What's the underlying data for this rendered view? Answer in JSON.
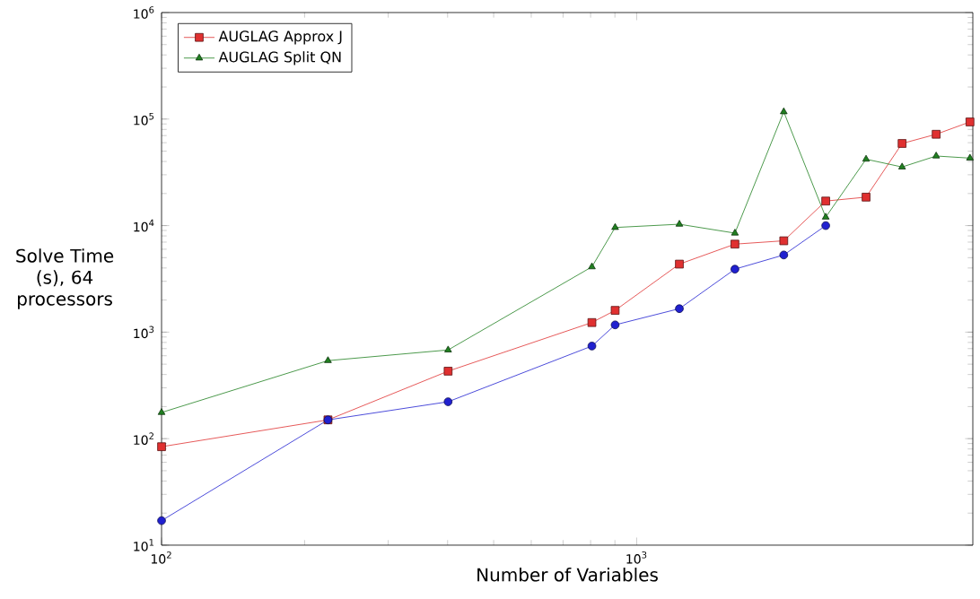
{
  "chart_data": {
    "type": "line",
    "xlabel": "Number of Variables",
    "ylabel": "Solve Time (s), 64 processors",
    "log": "xy",
    "grid": false,
    "legend": "top left",
    "xlim": [
      100,
      5100
    ],
    "ylim": [
      10,
      1000000
    ],
    "xticks": [
      {
        "value": 100,
        "label": "10$^{2}$"
      },
      {
        "value": 1000,
        "label": "10$^{3}$"
      }
    ],
    "yticks": [
      {
        "value": 10,
        "label": "10$^{1}$"
      },
      {
        "value": 100,
        "label": "10$^{2}$"
      },
      {
        "value": 1000,
        "label": "10$^{3}$"
      },
      {
        "value": 10000,
        "label": "10$^{4}$"
      },
      {
        "value": 100000,
        "label": "10$^{5}$"
      },
      {
        "value": 1000000,
        "label": "10$^{6}$"
      }
    ],
    "series": [
      {
        "color": "#2020d0",
        "marker": "circle",
        "x": [
          100,
          224,
          401,
          805,
          901,
          1230,
          1610,
          2040,
          2500
        ],
        "values": [
          17,
          150,
          222,
          740,
          1170,
          1660,
          3900,
          5300,
          10000
        ]
      },
      {
        "name": "AUGLAG Approx J",
        "color": "#e03030",
        "marker": "square",
        "x": [
          100,
          224,
          401,
          805,
          901,
          1230,
          1610,
          2040,
          2500,
          3040,
          3620,
          4270,
          5030
        ],
        "values": [
          84,
          150,
          430,
          1230,
          1600,
          4350,
          6700,
          7200,
          17000,
          18500,
          59000,
          72000,
          94000
        ]
      },
      {
        "name": "AUGLAG Split QN",
        "color": "#208020",
        "marker": "triangle",
        "x": [
          100,
          224,
          401,
          805,
          901,
          1230,
          1610,
          2040,
          2500,
          3040,
          3620,
          4270,
          5030
        ],
        "values": [
          176,
          540,
          680,
          4100,
          9600,
          10300,
          8500,
          117000,
          12000,
          42000,
          35500,
          45000,
          43000
        ]
      }
    ]
  }
}
